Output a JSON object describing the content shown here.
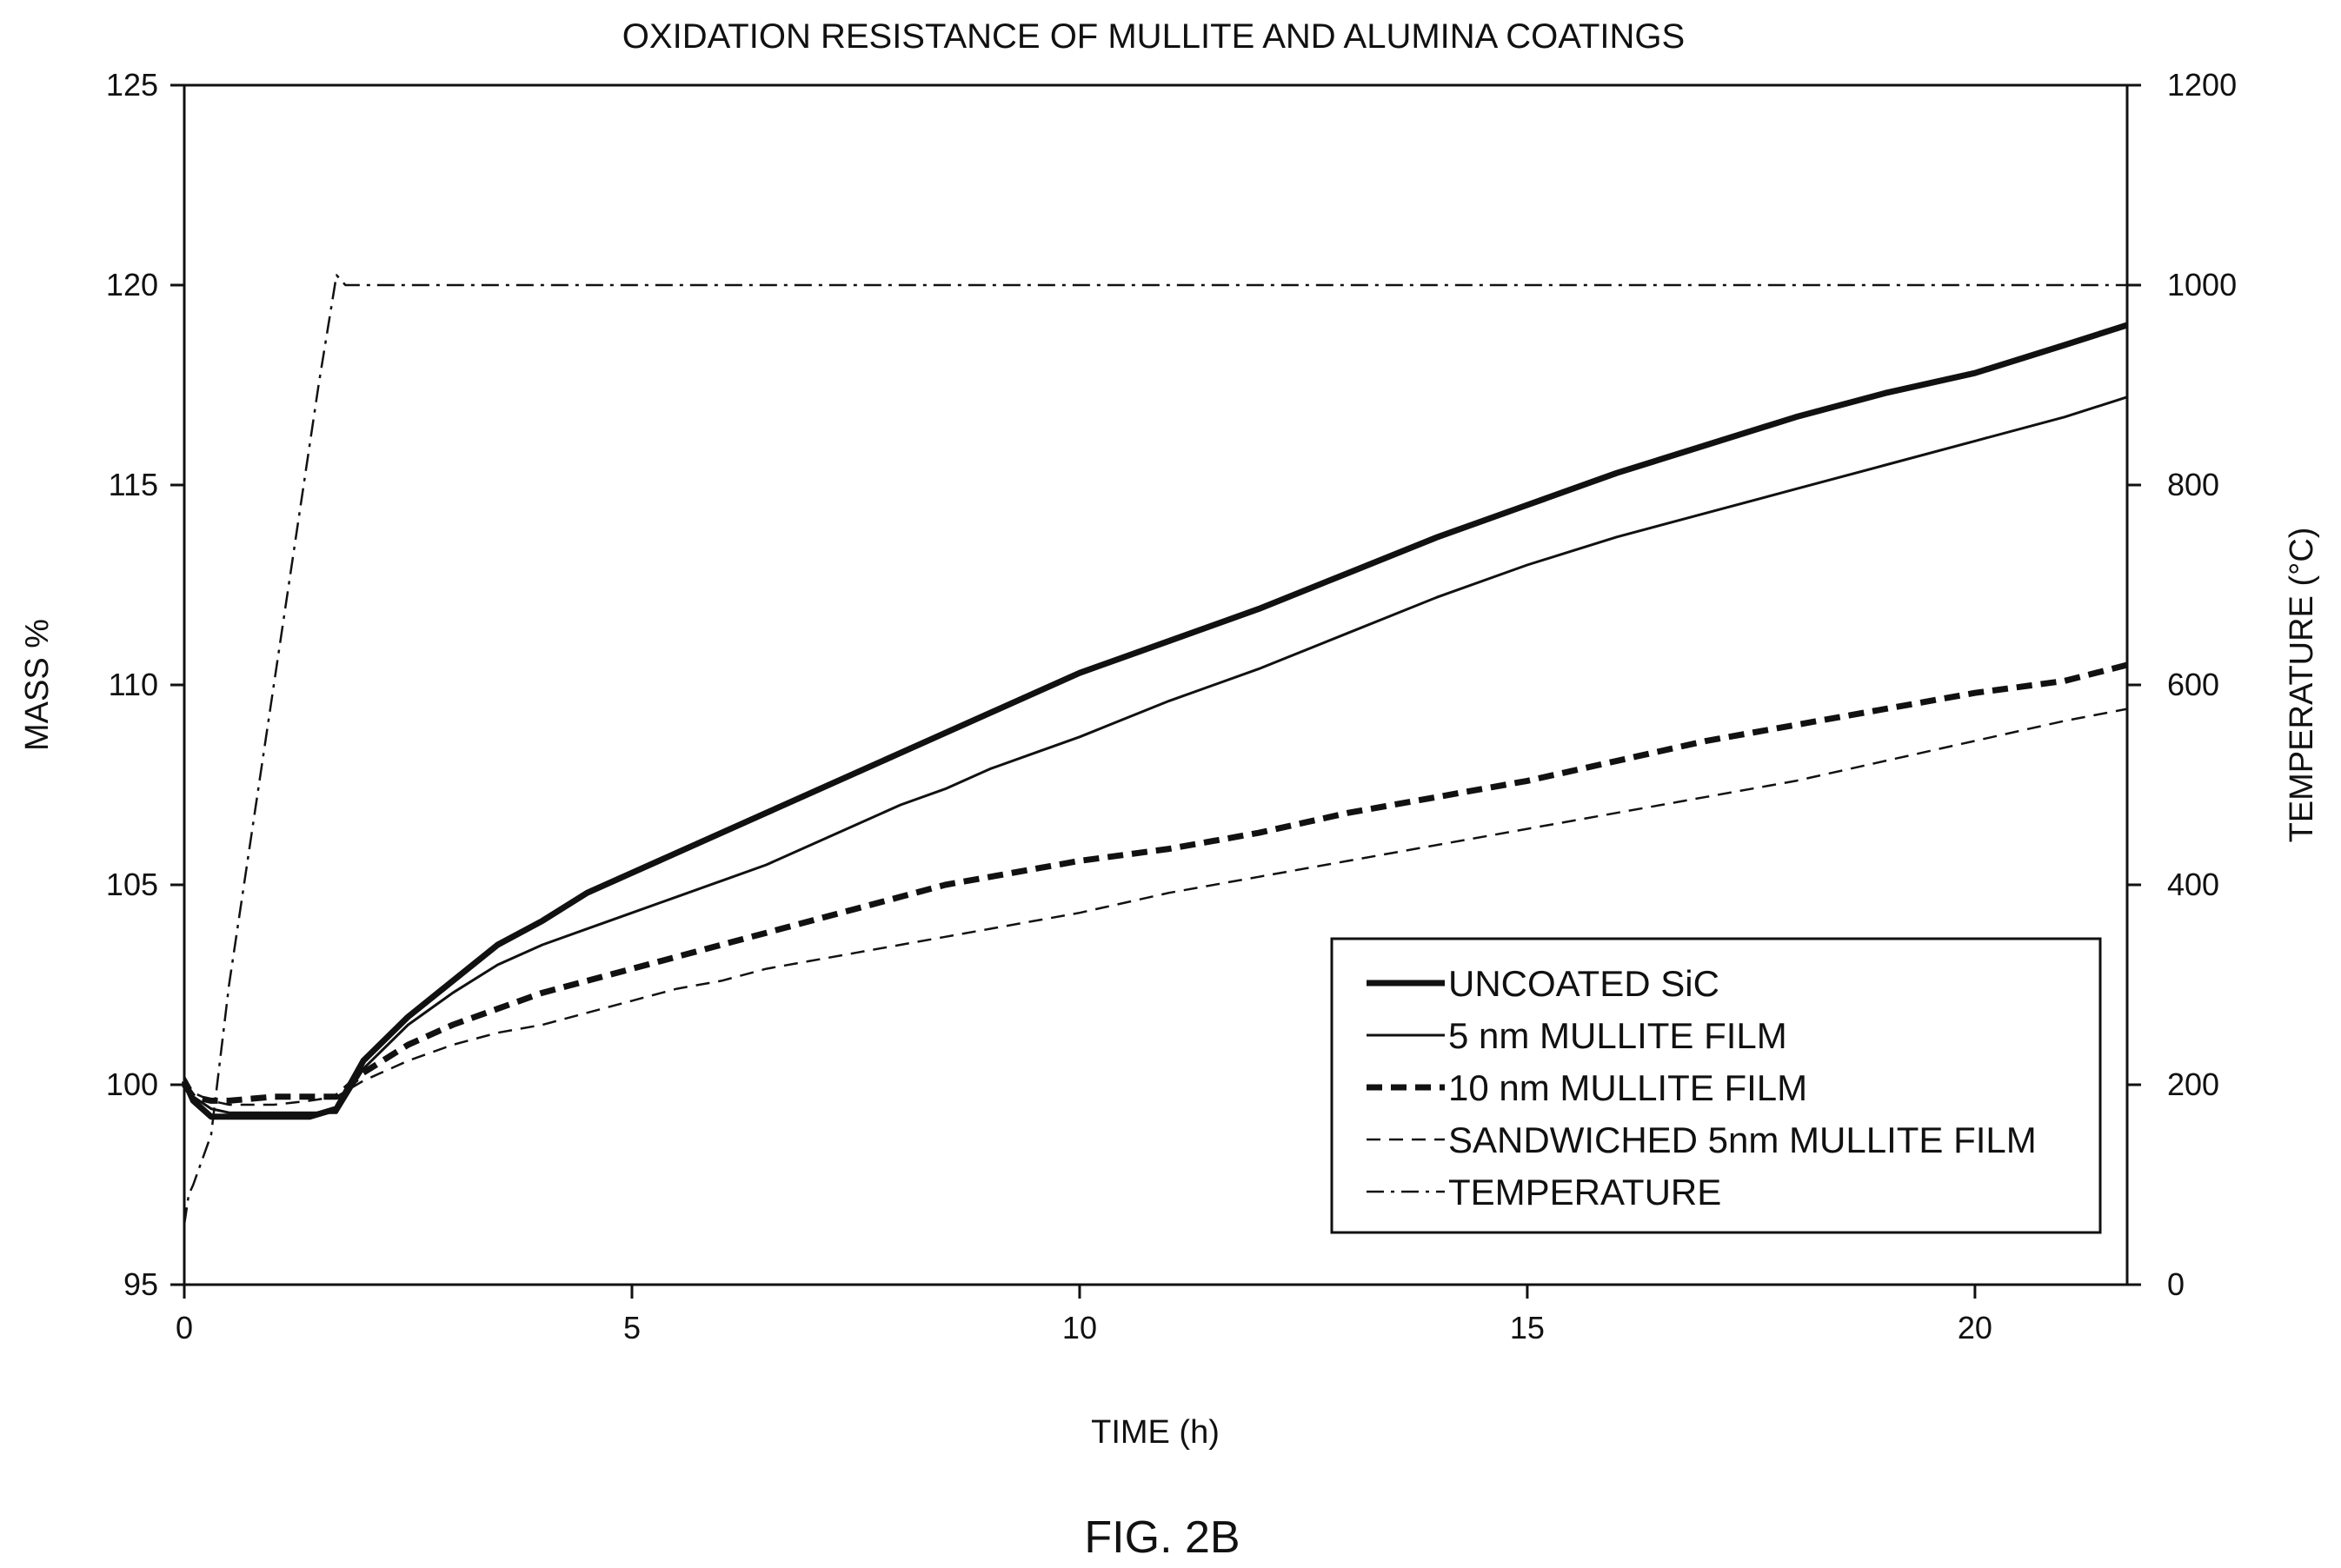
{
  "chart_data": {
    "type": "line",
    "title": "OXIDATION RESISTANCE OF MULLITE AND ALUMINA COATINGS",
    "xlabel": "TIME (h)",
    "ylabel": "MASS %",
    "y2label": "TEMPERATURE (°C)",
    "xlim": [
      0,
      21.7
    ],
    "ylim": [
      95,
      125
    ],
    "y2lim": [
      0,
      1200
    ],
    "xticks": [
      0,
      5,
      10,
      15,
      20
    ],
    "yticks": [
      95,
      100,
      105,
      110,
      115,
      120,
      125
    ],
    "y2ticks": [
      0,
      200,
      400,
      600,
      800,
      1000,
      1200
    ],
    "grid": false,
    "legend_position": "bottom-right",
    "series": [
      {
        "name": "UNCOATED SiC",
        "axis": "left",
        "color": "#111111",
        "x": [
          0,
          0.1,
          0.3,
          0.5,
          1.0,
          1.4,
          1.7,
          2.0,
          2.5,
          3.0,
          3.5,
          4.0,
          4.5,
          5.0,
          5.5,
          6.0,
          6.5,
          7.0,
          7.5,
          8.0,
          8.5,
          9.0,
          9.5,
          10.0,
          11.0,
          12.0,
          13.0,
          14.0,
          15.0,
          16.0,
          17.0,
          18.0,
          19.0,
          20.0,
          21.0,
          21.7
        ],
        "y": [
          100.1,
          99.6,
          99.2,
          99.2,
          99.2,
          99.2,
          99.4,
          100.6,
          101.7,
          102.6,
          103.5,
          104.1,
          104.8,
          105.3,
          105.8,
          106.3,
          106.8,
          107.3,
          107.8,
          108.3,
          108.8,
          109.3,
          109.8,
          110.3,
          111.1,
          111.9,
          112.8,
          113.7,
          114.5,
          115.3,
          116.0,
          116.7,
          117.3,
          117.8,
          118.5,
          119.0
        ]
      },
      {
        "name": "5 nm MULLITE FILM",
        "axis": "left",
        "color": "#111111",
        "x": [
          0,
          0.1,
          0.3,
          0.5,
          1.0,
          1.4,
          1.7,
          2.0,
          2.5,
          3.0,
          3.5,
          4.0,
          4.5,
          5.0,
          5.5,
          6.0,
          6.5,
          7.0,
          7.5,
          8.0,
          8.5,
          9.0,
          9.5,
          10.0,
          11.0,
          12.0,
          13.0,
          14.0,
          15.0,
          16.0,
          17.0,
          18.0,
          19.0,
          20.0,
          21.0,
          21.7
        ],
        "y": [
          100.1,
          99.7,
          99.4,
          99.3,
          99.3,
          99.3,
          99.3,
          100.4,
          101.5,
          102.3,
          103.0,
          103.5,
          103.9,
          104.3,
          104.7,
          105.1,
          105.5,
          106.0,
          106.5,
          107.0,
          107.4,
          107.9,
          108.3,
          108.7,
          109.6,
          110.4,
          111.3,
          112.2,
          113.0,
          113.7,
          114.3,
          114.9,
          115.5,
          116.1,
          116.7,
          117.2
        ]
      },
      {
        "name": "10 nm MULLITE FILM",
        "axis": "left",
        "color": "#111111",
        "x": [
          0,
          0.1,
          0.3,
          0.5,
          1.0,
          1.4,
          1.7,
          2.0,
          2.5,
          3.0,
          3.5,
          4.0,
          4.5,
          5.0,
          5.5,
          6.0,
          6.5,
          7.0,
          7.5,
          8.0,
          8.5,
          9.0,
          9.5,
          10.0,
          11.0,
          12.0,
          13.0,
          14.0,
          15.0,
          16.0,
          17.0,
          18.0,
          19.0,
          20.0,
          21.0,
          21.7
        ],
        "y": [
          100.0,
          99.7,
          99.6,
          99.6,
          99.7,
          99.7,
          99.7,
          100.3,
          101.0,
          101.5,
          101.9,
          102.3,
          102.6,
          102.9,
          103.2,
          103.5,
          103.8,
          104.1,
          104.4,
          104.7,
          105.0,
          105.2,
          105.4,
          105.6,
          105.9,
          106.3,
          106.8,
          107.2,
          107.6,
          108.1,
          108.6,
          109.0,
          109.4,
          109.8,
          110.1,
          110.5
        ]
      },
      {
        "name": "SANDWICHED 5nm MULLITE FILM",
        "axis": "left",
        "color": "#111111",
        "x": [
          0,
          0.1,
          0.3,
          0.5,
          1.0,
          1.4,
          1.7,
          2.0,
          2.5,
          3.0,
          3.5,
          4.0,
          4.5,
          5.0,
          5.5,
          6.0,
          6.5,
          7.0,
          7.5,
          8.0,
          8.5,
          9.0,
          9.5,
          10.0,
          11.0,
          12.0,
          13.0,
          14.0,
          15.0,
          16.0,
          17.0,
          18.0,
          19.0,
          20.0,
          21.0,
          21.7
        ],
        "y": [
          100.2,
          99.8,
          99.6,
          99.5,
          99.5,
          99.6,
          99.7,
          100.1,
          100.6,
          101.0,
          101.3,
          101.5,
          101.8,
          102.1,
          102.4,
          102.6,
          102.9,
          103.1,
          103.3,
          103.5,
          103.7,
          103.9,
          104.1,
          104.3,
          104.8,
          105.2,
          105.6,
          106.0,
          106.4,
          106.8,
          107.2,
          107.6,
          108.1,
          108.6,
          109.1,
          109.4
        ]
      },
      {
        "name": "TEMPERATURE",
        "axis": "right",
        "color": "#111111",
        "x": [
          0,
          0.05,
          0.1,
          0.3,
          0.5,
          1.0,
          1.5,
          1.7,
          1.8,
          21.7
        ],
        "y": [
          60,
          90,
          100,
          150,
          300,
          600,
          900,
          1010,
          1000,
          1000
        ]
      }
    ]
  },
  "figure_label": "FIG. 2B"
}
